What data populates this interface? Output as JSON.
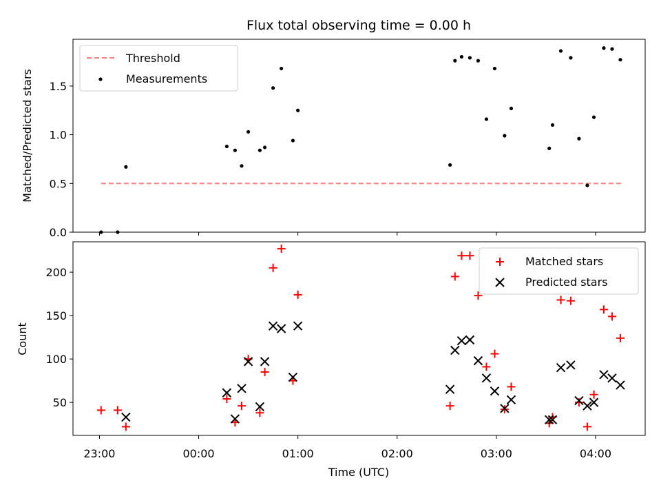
{
  "chart_data": [
    {
      "type": "scatter",
      "title": "Flux total observing time = 0.00 h",
      "ylabel": "Matched/Predicted stars",
      "xlabel": "",
      "x_unit": "hours (UTC) after 23:00 on the x axis ticks",
      "xlim": [
        "22:44",
        "04:30"
      ],
      "ylim": [
        0,
        1.98
      ],
      "yticks": [
        "0.0",
        "0.5",
        "1.0",
        "1.5"
      ],
      "legend_position": "top-left",
      "threshold": {
        "name": "Threshold",
        "value": 0.5,
        "x_start": "23:01",
        "x_end": "04:16",
        "color": "#ff8080",
        "style": "dashed"
      },
      "series": [
        {
          "name": "Measurements",
          "color": "#000000",
          "marker": "dot",
          "points": [
            [
              "23:01",
              0.0
            ],
            [
              "23:11",
              0.0
            ],
            [
              "23:16",
              0.67
            ],
            [
              "00:17",
              0.88
            ],
            [
              "00:22",
              0.84
            ],
            [
              "00:26",
              0.68
            ],
            [
              "00:30",
              1.03
            ],
            [
              "00:37",
              0.84
            ],
            [
              "00:40",
              0.87
            ],
            [
              "00:45",
              1.48
            ],
            [
              "00:50",
              1.68
            ],
            [
              "00:57",
              0.94
            ],
            [
              "01:00",
              1.25
            ],
            [
              "02:32",
              0.69
            ],
            [
              "02:35",
              1.76
            ],
            [
              "02:39",
              1.8
            ],
            [
              "02:44",
              1.79
            ],
            [
              "02:49",
              1.76
            ],
            [
              "02:54",
              1.16
            ],
            [
              "02:59",
              1.68
            ],
            [
              "03:05",
              0.99
            ],
            [
              "03:09",
              1.27
            ],
            [
              "03:32",
              0.86
            ],
            [
              "03:34",
              1.1
            ],
            [
              "03:39",
              1.86
            ],
            [
              "03:45",
              1.79
            ],
            [
              "03:50",
              0.96
            ],
            [
              "03:55",
              0.48
            ],
            [
              "03:59",
              1.18
            ],
            [
              "04:05",
              1.89
            ],
            [
              "04:10",
              1.88
            ],
            [
              "04:15",
              1.77
            ]
          ]
        }
      ]
    },
    {
      "type": "scatter",
      "title": "",
      "ylabel": "Count",
      "xlabel": "Time (UTC)",
      "xlim": [
        "22:44",
        "04:30"
      ],
      "ylim": [
        12,
        235
      ],
      "yticks": [
        "50",
        "100",
        "150",
        "200"
      ],
      "xticks": [
        "23:00",
        "00:00",
        "01:00",
        "02:00",
        "03:00",
        "04:00"
      ],
      "legend_position": "top-right",
      "series": [
        {
          "name": "Matched stars",
          "color": "#ff0000",
          "marker": "plus",
          "points": [
            [
              "23:01",
              41
            ],
            [
              "23:11",
              41
            ],
            [
              "23:16",
              22
            ],
            [
              "00:17",
              54
            ],
            [
              "00:22",
              27
            ],
            [
              "00:26",
              46
            ],
            [
              "00:30",
              100
            ],
            [
              "00:37",
              38
            ],
            [
              "00:40",
              85
            ],
            [
              "00:45",
              205
            ],
            [
              "00:50",
              227
            ],
            [
              "00:57",
              75
            ],
            [
              "01:00",
              174
            ],
            [
              "02:32",
              46
            ],
            [
              "02:35",
              195
            ],
            [
              "02:39",
              219
            ],
            [
              "02:44",
              219
            ],
            [
              "02:49",
              173
            ],
            [
              "02:54",
              91
            ],
            [
              "02:59",
              106
            ],
            [
              "03:05",
              42
            ],
            [
              "03:09",
              68
            ],
            [
              "03:32",
              26
            ],
            [
              "03:34",
              33
            ],
            [
              "03:39",
              168
            ],
            [
              "03:45",
              167
            ],
            [
              "03:50",
              50
            ],
            [
              "03:55",
              22
            ],
            [
              "03:59",
              59
            ],
            [
              "04:05",
              157
            ],
            [
              "04:10",
              149
            ],
            [
              "04:15",
              124
            ]
          ]
        },
        {
          "name": "Predicted stars",
          "color": "#000000",
          "marker": "x",
          "points": [
            [
              "23:16",
              33
            ],
            [
              "00:17",
              61
            ],
            [
              "00:22",
              31
            ],
            [
              "00:26",
              66
            ],
            [
              "00:30",
              97
            ],
            [
              "00:37",
              45
            ],
            [
              "00:40",
              97
            ],
            [
              "00:45",
              138
            ],
            [
              "00:50",
              135
            ],
            [
              "00:57",
              79
            ],
            [
              "01:00",
              138
            ],
            [
              "02:32",
              65
            ],
            [
              "02:35",
              110
            ],
            [
              "02:39",
              121
            ],
            [
              "02:44",
              122
            ],
            [
              "02:49",
              98
            ],
            [
              "02:54",
              78
            ],
            [
              "02:59",
              63
            ],
            [
              "03:05",
              43
            ],
            [
              "03:09",
              53
            ],
            [
              "03:32",
              30
            ],
            [
              "03:34",
              30
            ],
            [
              "03:39",
              90
            ],
            [
              "03:45",
              93
            ],
            [
              "03:50",
              52
            ],
            [
              "03:55",
              46
            ],
            [
              "03:59",
              50
            ],
            [
              "04:05",
              82
            ],
            [
              "04:10",
              78
            ],
            [
              "04:15",
              70
            ]
          ]
        }
      ]
    }
  ]
}
